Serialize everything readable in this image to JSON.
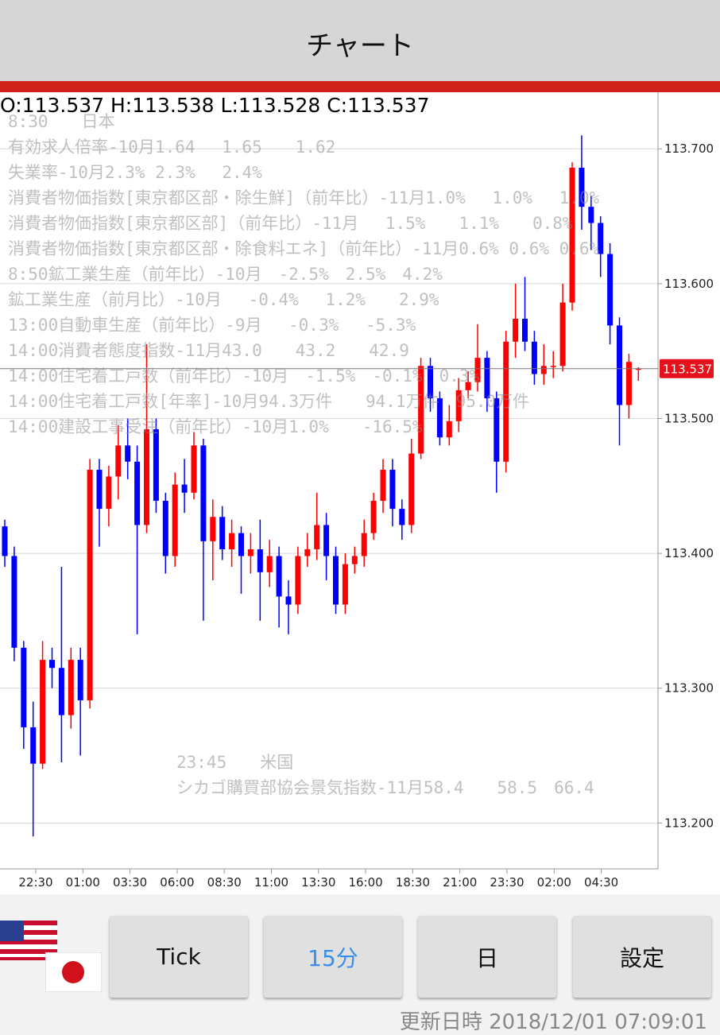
{
  "header": {
    "title": "チャート"
  },
  "ohlc_text": "O:113.537 H:113.538 L:113.528 C:113.537",
  "news": [
    "8:30　　日本",
    "有効求人倍率-10月1.64　 1.65　　1.62",
    "失業率-10月2.3% 2.3%　 2.4%",
    "消費者物価指数[東京都区部・除生鮮]（前年比）-11月1.0%　 1.0%　 1.0%",
    "消費者物価指数[東京都区部]（前年比）-11月　 1.5%　　1.1%　　0.8%",
    "消費者物価指数[東京都区部・除食料エネ]（前年比）-11月0.6% 0.6% 0.6%",
    "8:50鉱工業生産（前年比）-10月　-2.5%　2.5%　4.2%",
    "鉱工業生産（前月比）-10月　 -0.4%　 1.2%　　2.9%",
    "13:00自動車生産（前年比）-9月　 -0.3%　 -5.3%",
    "14:00消費者態度指数-11月43.0　　43.2　　42.9",
    "14:00住宅着工戸数（前年比）-10月　-1.5%　-0.1%　0.3%",
    "14:00住宅着工戸数[年率]-10月94.3万件　　94.1万件　95.0万件",
    "14:00建設工事受注（前年比）-10月1.0%　　-16.5%"
  ],
  "news_us": [
    "23:45　　米国",
    "シカゴ購買部協会景気指数-11月58.4　　58.5　66.4"
  ],
  "chart_data": {
    "type": "candlestick",
    "up_color": "#ff0000",
    "down_color": "#0000ff",
    "categories": [
      "22:30",
      "01:00",
      "03:30",
      "06:00",
      "08:30",
      "11:00",
      "13:30",
      "16:00",
      "18:30",
      "21:00",
      "23:30",
      "02:00",
      "04:30"
    ],
    "open": [
      113.42,
      113.398,
      113.33,
      113.271,
      113.244,
      113.321,
      113.315,
      113.28,
      113.321,
      113.291,
      113.462,
      113.433,
      113.457,
      113.48,
      113.468,
      113.421,
      113.492,
      113.439,
      113.398,
      113.451,
      113.445,
      113.48,
      113.409,
      113.427,
      113.403,
      113.415,
      113.398,
      113.403,
      113.386,
      113.398,
      113.368,
      113.362,
      113.398,
      113.403,
      113.421,
      113.398,
      113.362,
      113.392,
      113.398,
      113.415,
      113.439,
      113.462,
      113.433,
      113.421,
      113.474,
      113.539,
      113.515,
      113.486,
      113.498,
      113.521,
      113.527,
      113.545,
      113.515,
      113.468,
      113.557,
      113.574,
      113.557,
      113.533,
      113.539,
      113.539,
      113.586,
      113.686,
      113.657,
      113.645,
      113.622,
      113.569,
      113.51,
      113.537
    ],
    "high": [
      113.425,
      113.405,
      113.335,
      113.29,
      113.335,
      113.33,
      113.39,
      113.33,
      113.33,
      113.47,
      113.47,
      113.465,
      113.495,
      113.5,
      113.48,
      113.555,
      113.5,
      113.445,
      113.46,
      113.47,
      113.49,
      113.485,
      113.44,
      113.435,
      113.425,
      113.42,
      113.415,
      113.425,
      113.41,
      113.405,
      113.38,
      113.405,
      113.415,
      113.445,
      113.43,
      113.405,
      113.4,
      113.405,
      113.425,
      113.445,
      113.47,
      113.47,
      113.44,
      113.485,
      113.545,
      113.545,
      113.52,
      113.51,
      113.53,
      113.535,
      113.57,
      113.55,
      113.52,
      113.565,
      113.6,
      113.605,
      113.565,
      113.555,
      113.55,
      113.6,
      113.69,
      113.71,
      113.665,
      113.65,
      113.63,
      113.575,
      113.548,
      113.538
    ],
    "low": [
      113.39,
      113.32,
      113.255,
      113.19,
      113.24,
      113.3,
      113.245,
      113.27,
      113.25,
      113.285,
      113.405,
      113.42,
      113.44,
      113.455,
      113.34,
      113.415,
      113.43,
      113.385,
      113.39,
      113.43,
      113.44,
      113.35,
      113.38,
      113.395,
      113.39,
      113.37,
      113.385,
      113.35,
      113.375,
      113.345,
      113.34,
      113.355,
      113.39,
      113.395,
      113.38,
      113.355,
      113.355,
      113.385,
      113.39,
      113.41,
      113.43,
      113.42,
      113.41,
      113.415,
      113.47,
      113.505,
      113.48,
      113.48,
      113.49,
      113.515,
      113.52,
      113.505,
      113.445,
      113.46,
      113.545,
      113.55,
      113.525,
      113.525,
      113.53,
      113.535,
      113.58,
      113.64,
      113.625,
      113.605,
      113.555,
      113.48,
      113.5,
      113.528
    ],
    "close": [
      113.398,
      113.33,
      113.271,
      113.244,
      113.321,
      113.315,
      113.28,
      113.321,
      113.291,
      113.462,
      113.433,
      113.457,
      113.48,
      113.468,
      113.421,
      113.492,
      113.439,
      113.398,
      113.451,
      113.445,
      113.48,
      113.409,
      113.427,
      113.403,
      113.415,
      113.398,
      113.403,
      113.386,
      113.398,
      113.368,
      113.362,
      113.398,
      113.403,
      113.421,
      113.398,
      113.362,
      113.392,
      113.398,
      113.415,
      113.439,
      113.462,
      113.433,
      113.421,
      113.474,
      113.539,
      113.515,
      113.486,
      113.498,
      113.521,
      113.527,
      113.545,
      113.515,
      113.468,
      113.557,
      113.574,
      113.557,
      113.533,
      113.539,
      113.539,
      113.586,
      113.686,
      113.657,
      113.645,
      113.622,
      113.569,
      113.51,
      113.542,
      113.537
    ],
    "ylim": [
      113.166,
      113.742
    ],
    "yticks": [
      {
        "value": 113.2,
        "label": "113.200"
      },
      {
        "value": 113.3,
        "label": "113.300"
      },
      {
        "value": 113.4,
        "label": "113.400"
      },
      {
        "value": 113.5,
        "label": "113.500"
      },
      {
        "value": 113.6,
        "label": "113.600"
      },
      {
        "value": 113.7,
        "label": "113.700"
      }
    ],
    "last_price": {
      "value": 113.537,
      "label": "113.537"
    },
    "grid": true
  },
  "buttons": [
    "Tick",
    "15分",
    "日",
    "設定"
  ],
  "footer": "更新日時 2018/12/01 07:09:01"
}
